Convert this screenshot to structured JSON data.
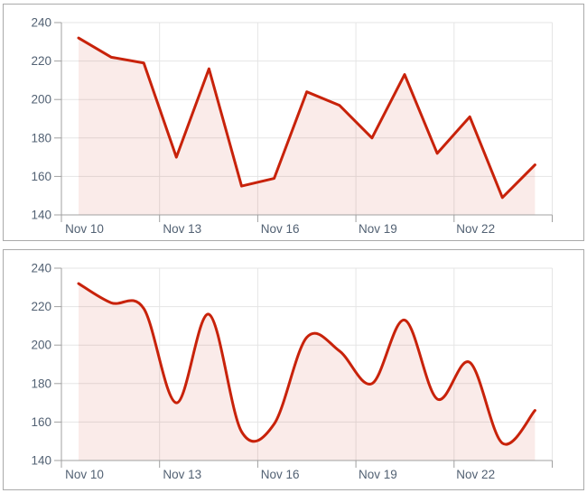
{
  "style": {
    "line_color": "#c8220a",
    "fill_color": "rgba(200,34,10,0.09)",
    "grid_color": "#e5e5e5",
    "axis_color": "#a0a0a0",
    "label_color": "#526173",
    "panel_border": "#aaaaaa",
    "background": "#ffffff"
  },
  "chart_data": [
    {
      "type": "area",
      "line_shape": "linear",
      "title": "",
      "xlabel": "",
      "ylabel": "",
      "categories": [
        "Nov 10",
        "Nov 11",
        "Nov 12",
        "Nov 13",
        "Nov 14",
        "Nov 15",
        "Nov 16",
        "Nov 17",
        "Nov 18",
        "Nov 19",
        "Nov 20",
        "Nov 21",
        "Nov 22",
        "Nov 23",
        "Nov 24"
      ],
      "values": [
        232,
        222,
        219,
        170,
        216,
        155,
        159,
        204,
        197,
        180,
        213,
        172,
        191,
        149,
        166
      ],
      "x_tick_labels": [
        "Nov 10",
        "Nov 13",
        "Nov 16",
        "Nov 19",
        "Nov 22"
      ],
      "x_label_every_days": 3,
      "y_tick_labels": [
        "140",
        "160",
        "180",
        "200",
        "220",
        "240"
      ],
      "yticks": [
        140,
        160,
        180,
        200,
        220,
        240
      ],
      "ylim": [
        140,
        240
      ],
      "grid": true,
      "legend": false
    },
    {
      "type": "area",
      "line_shape": "spline",
      "title": "",
      "xlabel": "",
      "ylabel": "",
      "categories": [
        "Nov 10",
        "Nov 11",
        "Nov 12",
        "Nov 13",
        "Nov 14",
        "Nov 15",
        "Nov 16",
        "Nov 17",
        "Nov 18",
        "Nov 19",
        "Nov 20",
        "Nov 21",
        "Nov 22",
        "Nov 23",
        "Nov 24"
      ],
      "values": [
        232,
        222,
        219,
        170,
        216,
        155,
        159,
        204,
        197,
        180,
        213,
        172,
        191,
        149,
        166
      ],
      "x_tick_labels": [
        "Nov 10",
        "Nov 13",
        "Nov 16",
        "Nov 19",
        "Nov 22"
      ],
      "x_label_every_days": 3,
      "y_tick_labels": [
        "140",
        "160",
        "180",
        "200",
        "220",
        "240"
      ],
      "yticks": [
        140,
        160,
        180,
        200,
        220,
        240
      ],
      "ylim": [
        140,
        240
      ],
      "grid": true,
      "legend": false
    }
  ]
}
